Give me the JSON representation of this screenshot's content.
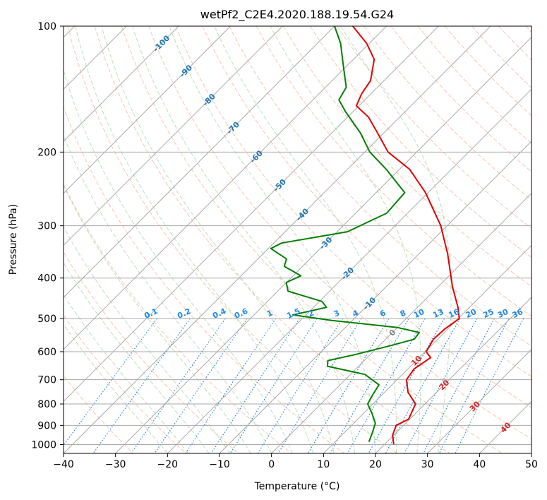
{
  "chart_data": {
    "type": "line",
    "title": "wetPf2_C2E4.2020.188.19.54.G24",
    "xlabel": "Temperature (°C)",
    "ylabel": "Pressure (hPa)",
    "xlim": [
      -40,
      50
    ],
    "ylim": [
      1050,
      100
    ],
    "y_scale": "log",
    "x_ticks": [
      -40,
      -30,
      -20,
      -10,
      0,
      10,
      20,
      30,
      40,
      50
    ],
    "y_ticks": [
      100,
      200,
      300,
      400,
      500,
      600,
      700,
      800,
      900,
      1000
    ],
    "grid": true,
    "skew_axes": true,
    "colors": {
      "temperature": "#e00000",
      "dewpoint": "#008000",
      "dry_adiabat": "#f4a582",
      "moist_adiabat": "#9ed29e",
      "mixing_ratio": "#1e88e5",
      "isotherm": "#aaaaaa",
      "frost_line": "#d2b48c",
      "isotherm_label_cold": "#1f77b4",
      "isotherm_label_warm": "#d62728",
      "zero_label": "#808080"
    },
    "series": [
      {
        "role": "temperature",
        "points": [
          {
            "p": 1000,
            "t": 21.8
          },
          {
            "p": 950,
            "t": 19.8
          },
          {
            "p": 900,
            "t": 18.6
          },
          {
            "p": 870,
            "t": 19.8
          },
          {
            "p": 800,
            "t": 18.2
          },
          {
            "p": 750,
            "t": 14.5
          },
          {
            "p": 700,
            "t": 11.8
          },
          {
            "p": 660,
            "t": 11.2
          },
          {
            "p": 620,
            "t": 12.2
          },
          {
            "p": 600,
            "t": 10.2
          },
          {
            "p": 560,
            "t": 9.2
          },
          {
            "p": 530,
            "t": 9.4
          },
          {
            "p": 500,
            "t": 10.2
          },
          {
            "p": 470,
            "t": 7.8
          },
          {
            "p": 420,
            "t": 2.8
          },
          {
            "p": 350,
            "t": -4.5
          },
          {
            "p": 300,
            "t": -11.2
          },
          {
            "p": 250,
            "t": -20.5
          },
          {
            "p": 220,
            "t": -28.0
          },
          {
            "p": 200,
            "t": -35.5
          },
          {
            "p": 180,
            "t": -41.2
          },
          {
            "p": 165,
            "t": -46.0
          },
          {
            "p": 155,
            "t": -50.5
          },
          {
            "p": 145,
            "t": -51.8
          },
          {
            "p": 135,
            "t": -52.6
          },
          {
            "p": 120,
            "t": -56.0
          },
          {
            "p": 110,
            "t": -60.5
          },
          {
            "p": 100,
            "t": -66.5
          }
        ]
      },
      {
        "role": "dewpoint",
        "points": [
          {
            "p": 985,
            "t": 16.5
          },
          {
            "p": 940,
            "t": 15.5
          },
          {
            "p": 890,
            "t": 14.2
          },
          {
            "p": 840,
            "t": 11.5
          },
          {
            "p": 800,
            "t": 9.0
          },
          {
            "p": 760,
            "t": 8.2
          },
          {
            "p": 720,
            "t": 7.5
          },
          {
            "p": 680,
            "t": 2.8
          },
          {
            "p": 650,
            "t": -6.0
          },
          {
            "p": 630,
            "t": -7.0
          },
          {
            "p": 610,
            "t": -3.0
          },
          {
            "p": 580,
            "t": 2.2
          },
          {
            "p": 560,
            "t": 5.5
          },
          {
            "p": 540,
            "t": 5.2
          },
          {
            "p": 525,
            "t": 0.0
          },
          {
            "p": 505,
            "t": -14.0
          },
          {
            "p": 490,
            "t": -22.5
          },
          {
            "p": 470,
            "t": -17.5
          },
          {
            "p": 455,
            "t": -19.5
          },
          {
            "p": 430,
            "t": -28.0
          },
          {
            "p": 410,
            "t": -30.0
          },
          {
            "p": 395,
            "t": -28.5
          },
          {
            "p": 375,
            "t": -33.5
          },
          {
            "p": 360,
            "t": -34.5
          },
          {
            "p": 340,
            "t": -39.5
          },
          {
            "p": 330,
            "t": -38.5
          },
          {
            "p": 310,
            "t": -28.0
          },
          {
            "p": 280,
            "t": -24.0
          },
          {
            "p": 250,
            "t": -24.5
          },
          {
            "p": 220,
            "t": -32.5
          },
          {
            "p": 200,
            "t": -39.0
          },
          {
            "p": 180,
            "t": -44.5
          },
          {
            "p": 160,
            "t": -51.5
          },
          {
            "p": 150,
            "t": -55.0
          },
          {
            "p": 140,
            "t": -56.0
          },
          {
            "p": 125,
            "t": -60.5
          },
          {
            "p": 110,
            "t": -65.5
          },
          {
            "p": 100,
            "t": -70.0
          }
        ]
      }
    ],
    "isotherm_labels_cold": [
      "-100",
      "-90",
      "-80",
      "-70",
      "-60",
      "-50",
      "-40",
      "-30",
      "-20",
      "-10"
    ],
    "isotherm_labels_warm": [
      "0",
      "10",
      "20",
      "30",
      "40"
    ],
    "mixing_ratio_labels": [
      "0.1",
      "0.2",
      "0.4",
      "0.6",
      "1",
      "1.5",
      "2",
      "3",
      "4",
      "6",
      "8",
      "10",
      "13",
      "16",
      "20",
      "25",
      "30",
      "36"
    ]
  }
}
